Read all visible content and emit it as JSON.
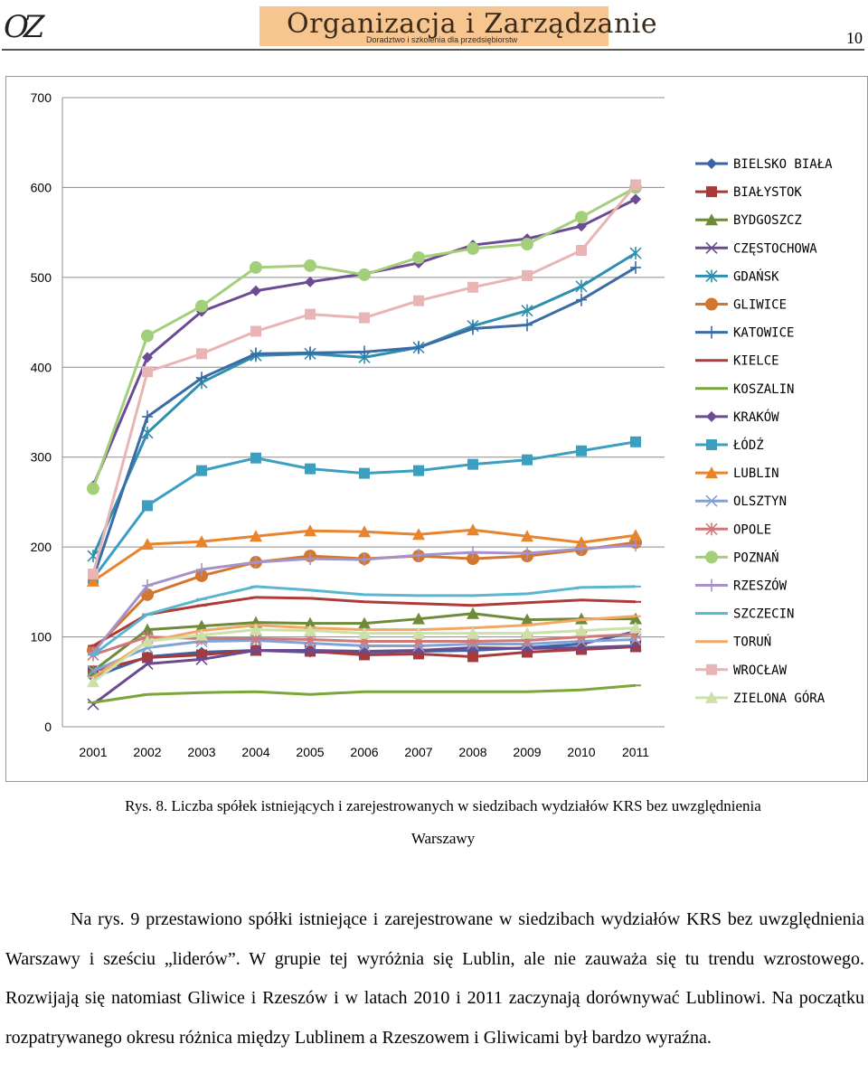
{
  "header": {
    "logo_mark": "OZ",
    "brand_title": "Organizacja i Zarządzanie",
    "brand_subtitle": "Doradztwo i szkolenia dla przedsiębiorstw",
    "page_number": "10"
  },
  "chart_data": {
    "type": "line",
    "title": "",
    "xlabel": "",
    "ylabel": "",
    "ylim": [
      0,
      700
    ],
    "yticks": [
      0,
      100,
      200,
      300,
      400,
      500,
      600,
      700
    ],
    "grid": true,
    "legend_position": "right",
    "categories": [
      "2001",
      "2002",
      "2003",
      "2004",
      "2005",
      "2006",
      "2007",
      "2008",
      "2009",
      "2010",
      "2011"
    ],
    "series": [
      {
        "name": "BIELSKO BIAŁA",
        "color": "#3b63a6",
        "marker": "diamond",
        "values": [
          55,
          78,
          83,
          85,
          83,
          83,
          84,
          85,
          88,
          92,
          106
        ]
      },
      {
        "name": "BIAŁYSTOK",
        "color": "#a83a3a",
        "marker": "square",
        "values": [
          62,
          77,
          80,
          85,
          84,
          80,
          81,
          78,
          83,
          86,
          89
        ]
      },
      {
        "name": "BYDGOSZCZ",
        "color": "#6e8a3a",
        "marker": "triangle",
        "values": [
          62,
          108,
          112,
          116,
          115,
          115,
          120,
          126,
          119,
          120,
          120
        ]
      },
      {
        "name": "CZĘSTOCHOWA",
        "color": "#6b4a8e",
        "marker": "x",
        "values": [
          25,
          70,
          75,
          85,
          85,
          84,
          85,
          88,
          87,
          88,
          90
        ]
      },
      {
        "name": "GDAŃSK",
        "color": "#2f8fae",
        "marker": "star",
        "values": [
          190,
          327,
          383,
          413,
          415,
          411,
          422,
          446,
          463,
          490,
          527
        ]
      },
      {
        "name": "GLIWICE",
        "color": "#d3772f",
        "marker": "circle",
        "values": [
          85,
          147,
          168,
          183,
          190,
          187,
          190,
          187,
          190,
          197,
          205
        ]
      },
      {
        "name": "KATOWICE",
        "color": "#3b6ca6",
        "marker": "plus",
        "values": [
          165,
          345,
          388,
          415,
          416,
          417,
          422,
          443,
          447,
          475,
          511
        ]
      },
      {
        "name": "KIELCE",
        "color": "#b03a3a",
        "marker": "dash",
        "values": [
          90,
          125,
          135,
          144,
          143,
          139,
          137,
          135,
          138,
          141,
          139
        ]
      },
      {
        "name": "KOSZALIN",
        "color": "#7aa63a",
        "marker": "dash",
        "values": [
          27,
          36,
          38,
          39,
          36,
          39,
          39,
          39,
          39,
          41,
          46
        ]
      },
      {
        "name": "KRAKÓW",
        "color": "#6c4a96",
        "marker": "diamond",
        "values": [
          268,
          411,
          462,
          485,
          495,
          504,
          516,
          536,
          543,
          557,
          587
        ]
      },
      {
        "name": "ŁÓDŹ",
        "color": "#3a9fc0",
        "marker": "square",
        "values": [
          165,
          246,
          285,
          299,
          287,
          282,
          285,
          292,
          297,
          307,
          317
        ]
      },
      {
        "name": "LUBLIN",
        "color": "#e8842c",
        "marker": "triangle",
        "values": [
          162,
          203,
          206,
          212,
          218,
          217,
          214,
          219,
          212,
          205,
          213
        ]
      },
      {
        "name": "OLSZTYN",
        "color": "#7fa3d9",
        "marker": "x",
        "values": [
          62,
          88,
          95,
          96,
          93,
          90,
          90,
          92,
          92,
          95,
          97
        ]
      },
      {
        "name": "OPOLE",
        "color": "#d07777",
        "marker": "star",
        "values": [
          80,
          100,
          98,
          98,
          97,
          95,
          95,
          95,
          96,
          100,
          103
        ]
      },
      {
        "name": "POZNAŃ",
        "color": "#a3cf7a",
        "marker": "circle",
        "values": [
          265,
          435,
          468,
          511,
          513,
          503,
          522,
          532,
          537,
          567,
          600
        ]
      },
      {
        "name": "RZESZÓW",
        "color": "#a592c8",
        "marker": "plus",
        "values": [
          82,
          157,
          175,
          183,
          187,
          186,
          191,
          194,
          193,
          198,
          202
        ]
      },
      {
        "name": "SZCZECIN",
        "color": "#5ab5cf",
        "marker": "dash",
        "values": [
          80,
          125,
          142,
          156,
          152,
          147,
          146,
          146,
          148,
          155,
          156
        ]
      },
      {
        "name": "TORUŃ",
        "color": "#f2a864",
        "marker": "dash",
        "values": [
          55,
          95,
          107,
          113,
          110,
          108,
          108,
          110,
          113,
          119,
          123
        ]
      },
      {
        "name": "WROCŁAW",
        "color": "#e8b4b4",
        "marker": "square",
        "values": [
          170,
          395,
          415,
          440,
          459,
          455,
          474,
          489,
          502,
          530,
          603
        ]
      },
      {
        "name": "ZIELONA GÓRA",
        "color": "#cce0a8",
        "marker": "triangle",
        "values": [
          50,
          95,
          102,
          108,
          107,
          104,
          104,
          104,
          104,
          107,
          110
        ]
      }
    ]
  },
  "caption": {
    "line1": "Rys. 8. Liczba spółek istniejących i zarejestrowanych w siedzibach wydziałów KRS bez uwzględnienia",
    "line2": "Warszawy"
  },
  "body": {
    "paragraph": "Na rys. 9 przestawiono spółki istniejące i zarejestrowane w siedzibach wydziałów KRS bez uwzględnienia Warszawy i sześciu „liderów”. W grupie tej wyróżnia się Lublin, ale nie zauważa się tu trendu wzrostowego. Rozwijają się natomiast Gliwice i Rzeszów i w latach 2010 i 2011 zaczynają dorównywać Lublinowi. Na początku rozpatrywanego okresu różnica między Lublinem a Rzeszowem i Gliwicami był bardzo wyraźna."
  }
}
